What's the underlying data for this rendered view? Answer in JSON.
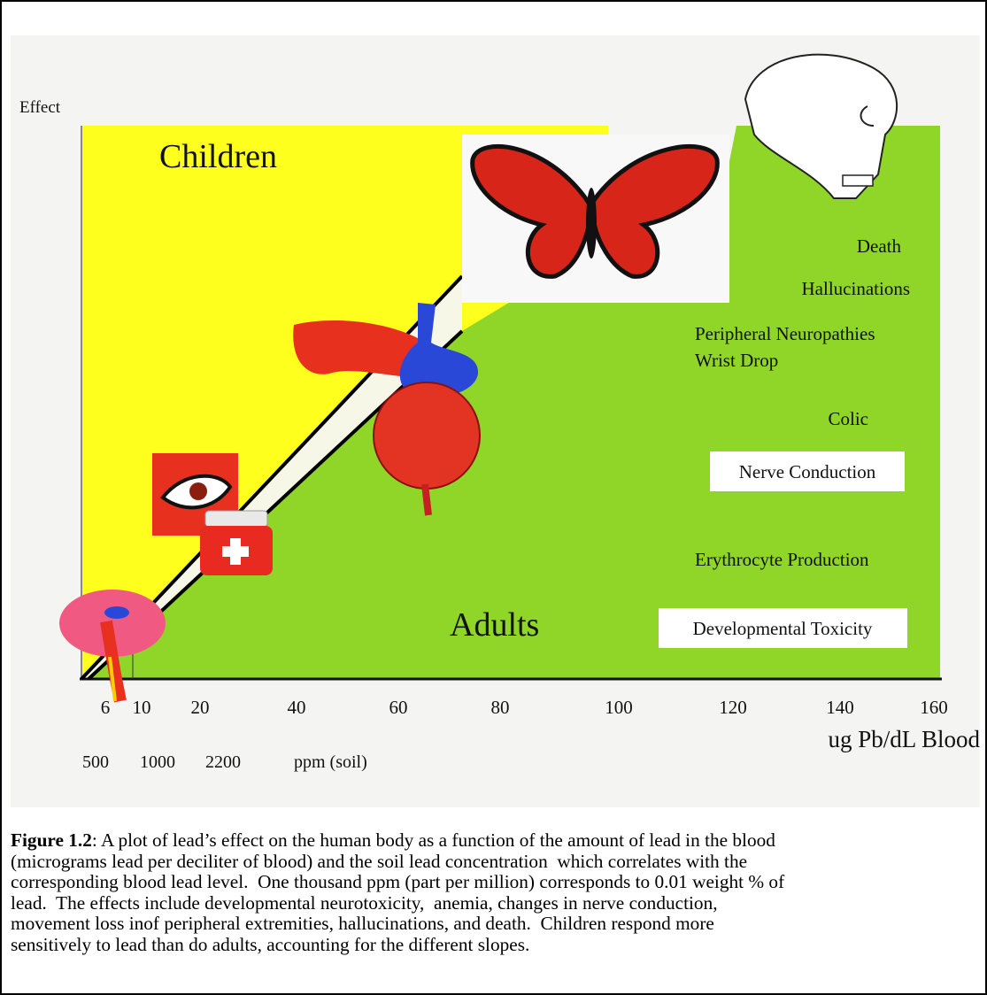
{
  "figure": {
    "y_axis_label": "Effect",
    "regions": {
      "children": "Children",
      "adults": "Adults"
    },
    "effects": [
      "Death",
      "Hallucinations",
      "Peripheral Neuropathies",
      "Wrist Drop",
      "Colic",
      "Nerve Conduction",
      "Erythrocyte Production",
      "Developmental Toxicity"
    ],
    "blood_ticks": [
      "6",
      "10",
      "20",
      "40",
      "60",
      "80",
      "100",
      "120",
      "140",
      "160"
    ],
    "blood_axis_label": "ug Pb/dL Blood",
    "soil_ticks": [
      "500",
      "1000",
      "2200"
    ],
    "soil_axis_label": "ppm (soil)"
  },
  "caption": {
    "label": "Figure 1.2",
    "lines": [
      ": A plot of lead’s effect on the human body as a function of the amount of lead in the blood",
      "(micrograms lead per deciliter of blood) and the soil lead concentration  which correlates with the",
      "corresponding blood lead level.  One thousand ppm (part per million) corresponds to 0.01 weight % of",
      "lead.  The effects include developmental neurotoxicity,  anemia, changes in nerve conduction,",
      "movement loss inof peripheral extremities, hallucinations, and death.  Children respond more",
      "sensitively to lead than do adults, accounting for the different slopes."
    ]
  }
}
